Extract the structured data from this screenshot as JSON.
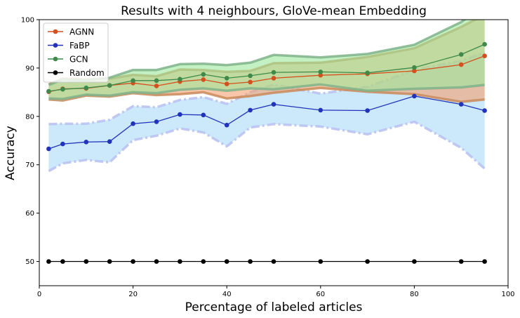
{
  "chart_data": {
    "type": "line",
    "title": "Results with 4 neighbours, GloVe-mean Embedding",
    "xlabel": "Percentage of labeled articles",
    "ylabel": "Accuracy",
    "xlim": [
      0,
      100
    ],
    "ylim": [
      45,
      100
    ],
    "xticks": [
      0,
      20,
      40,
      60,
      80,
      100
    ],
    "yticks": [
      50,
      60,
      70,
      80,
      90,
      100
    ],
    "legend_position": "top-left",
    "x": [
      2,
      5,
      10,
      15,
      20,
      25,
      30,
      35,
      40,
      45,
      50,
      60,
      70,
      80,
      90,
      95
    ],
    "series": [
      {
        "name": "AGNN",
        "color": "#d4501e",
        "band_color": "#f5a070",
        "band_edge": "#c98a5a",
        "values": [
          85.1,
          85.7,
          85.8,
          86.4,
          86.9,
          86.3,
          87.2,
          87.6,
          86.7,
          87.1,
          87.9,
          88.5,
          88.8,
          89.4,
          90.7,
          92.5
        ],
        "lower": [
          83.5,
          83.3,
          84.3,
          84.1,
          84.8,
          84.4,
          84.6,
          85.0,
          83.7,
          84.2,
          84.9,
          85.9,
          85.1,
          84.6,
          83.0,
          83.5
        ],
        "upper": [
          86.6,
          87.8,
          87.6,
          87.8,
          88.6,
          88.3,
          89.7,
          89.6,
          89.2,
          89.4,
          91.0,
          91.1,
          92.3,
          94.1,
          98.5,
          101.0
        ]
      },
      {
        "name": "FaBP",
        "color": "#2233bb",
        "band_color": "#cce9fb",
        "band_edge": "#b9bff0",
        "values": [
          73.3,
          74.3,
          74.7,
          74.8,
          78.5,
          78.9,
          80.4,
          80.3,
          78.2,
          81.3,
          82.5,
          81.3,
          81.2,
          84.2,
          82.5,
          81.2
        ],
        "lower": [
          68.7,
          70.3,
          71.0,
          70.5,
          75.1,
          76.0,
          77.5,
          76.7,
          73.8,
          77.7,
          78.4,
          77.9,
          76.3,
          78.9,
          73.5,
          69.2
        ],
        "upper": [
          78.4,
          78.5,
          78.5,
          79.3,
          82.1,
          81.9,
          83.4,
          84.0,
          82.6,
          85.0,
          86.6,
          84.7,
          86.1,
          89.6,
          91.5,
          93.2
        ]
      },
      {
        "name": "GCN",
        "color": "#3f8a4a",
        "band_color": "#9be89b",
        "band_edge": "#7fb38a",
        "values": [
          85.2,
          85.6,
          85.9,
          86.4,
          87.4,
          87.4,
          87.7,
          88.7,
          87.9,
          88.4,
          89.1,
          89.2,
          89.0,
          90.1,
          92.8,
          94.9
        ],
        "lower": [
          83.7,
          83.6,
          84.5,
          84.3,
          85.0,
          84.8,
          85.5,
          85.8,
          85.3,
          85.8,
          85.6,
          86.6,
          85.3,
          85.7,
          86.0,
          86.5
        ],
        "upper": [
          86.5,
          87.6,
          87.5,
          88.0,
          89.6,
          89.6,
          90.8,
          90.9,
          90.6,
          91.1,
          92.7,
          92.2,
          92.9,
          94.8,
          99.5,
          103.0
        ]
      },
      {
        "name": "Random",
        "color": "#000000",
        "values": [
          50,
          50,
          50,
          50,
          50,
          50,
          50,
          50,
          50,
          50,
          50,
          50,
          50,
          50,
          50,
          50
        ]
      }
    ]
  }
}
